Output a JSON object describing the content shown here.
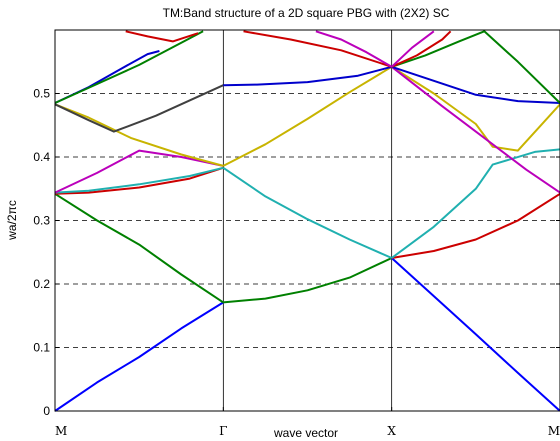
{
  "chart_data": {
    "type": "line",
    "title": "TM:Band structure of a 2D square PBG with (2X2) SC",
    "xlabel": "wave vector",
    "ylabel": "wa/2πc",
    "ylim": [
      0,
      0.6
    ],
    "yticks": [
      0,
      0.1,
      0.2,
      0.3,
      0.4,
      0.5
    ],
    "ytick_labels": [
      "0",
      "0.1",
      "0.2",
      "0.3",
      "0.4",
      "0.5"
    ],
    "xlim": [
      0,
      3
    ],
    "xticks": [
      0,
      1,
      2,
      3
    ],
    "xtick_labels": [
      "M",
      "Γ",
      "X",
      "M"
    ],
    "grid": "horizontal dashed",
    "symmetry_lines_at": [
      1,
      2
    ],
    "series": [
      {
        "color": "#0000ff",
        "x": [
          0,
          0.25,
          0.5,
          0.75,
          1
        ],
        "values": [
          0,
          0.045,
          0.085,
          0.13,
          0.171
        ]
      },
      {
        "color": "#008000",
        "x": [
          0,
          0.25,
          0.5,
          0.75,
          1
        ],
        "values": [
          0.342,
          0.3,
          0.262,
          0.215,
          0.171
        ]
      },
      {
        "color": "#cc0000",
        "x": [
          0,
          0.2,
          0.5,
          0.8,
          1
        ],
        "values": [
          0.342,
          0.344,
          0.352,
          0.366,
          0.383
        ]
      },
      {
        "color": "#20b0b0",
        "x": [
          0,
          0.2,
          0.5,
          0.8,
          1
        ],
        "values": [
          0.344,
          0.347,
          0.357,
          0.37,
          0.383
        ]
      },
      {
        "color": "#bb00bb",
        "x": [
          0,
          0.25,
          0.5,
          0.75,
          1
        ],
        "values": [
          0.344,
          0.375,
          0.41,
          0.4,
          0.386
        ]
      },
      {
        "color": "#c8b400",
        "x": [
          0,
          0.2,
          0.45,
          0.75,
          1
        ],
        "values": [
          0.483,
          0.462,
          0.43,
          0.404,
          0.386
        ]
      },
      {
        "color": "#404040",
        "x": [
          0,
          0.2,
          0.35,
          0.6,
          1
        ],
        "values": [
          0.483,
          0.458,
          0.44,
          0.465,
          0.513
        ]
      },
      {
        "color": "#0000cc",
        "x": [
          0,
          0.2,
          0.4,
          0.55,
          0.62
        ],
        "values": [
          0.485,
          0.51,
          0.54,
          0.562,
          0.567
        ]
      },
      {
        "color": "#008000",
        "x": [
          0,
          0.25,
          0.5,
          0.75,
          0.88
        ],
        "values": [
          0.485,
          0.515,
          0.545,
          0.58,
          0.598
        ]
      },
      {
        "color": "#cc0000",
        "x": [
          0.42,
          0.55,
          0.7,
          0.85
        ],
        "values": [
          0.598,
          0.59,
          0.582,
          0.595
        ]
      },
      {
        "color": "#008000",
        "x": [
          1,
          1.25,
          1.5,
          1.75,
          2
        ],
        "values": [
          0.171,
          0.177,
          0.19,
          0.21,
          0.241
        ]
      },
      {
        "color": "#20b0b0",
        "x": [
          1,
          1.25,
          1.5,
          1.75,
          2
        ],
        "values": [
          0.383,
          0.338,
          0.302,
          0.27,
          0.241
        ]
      },
      {
        "color": "#c8b400",
        "x": [
          1,
          1.25,
          1.5,
          1.75,
          2
        ],
        "values": [
          0.386,
          0.42,
          0.46,
          0.502,
          0.542
        ]
      },
      {
        "color": "#0000cc",
        "x": [
          1,
          1.2,
          1.5,
          1.8,
          2
        ],
        "values": [
          0.513,
          0.514,
          0.518,
          0.528,
          0.542
        ]
      },
      {
        "color": "#cc0000",
        "x": [
          1.12,
          1.4,
          1.7,
          2
        ],
        "values": [
          0.598,
          0.585,
          0.568,
          0.542
        ]
      },
      {
        "color": "#bb00bb",
        "x": [
          1.55,
          1.7,
          1.85,
          2
        ],
        "values": [
          0.598,
          0.585,
          0.565,
          0.542
        ]
      },
      {
        "color": "#0000ff",
        "x": [
          2,
          2.25,
          2.5,
          2.75,
          3
        ],
        "values": [
          0.241,
          0.181,
          0.121,
          0.06,
          0
        ]
      },
      {
        "color": "#cc0000",
        "x": [
          2,
          2.25,
          2.5,
          2.75,
          3
        ],
        "values": [
          0.241,
          0.252,
          0.27,
          0.3,
          0.342
        ]
      },
      {
        "color": "#20b0b0",
        "x": [
          2,
          2.25,
          2.5,
          2.6,
          2.85,
          3
        ],
        "values": [
          0.241,
          0.29,
          0.35,
          0.388,
          0.408,
          0.412
        ]
      },
      {
        "color": "#c8b400",
        "x": [
          2,
          2.25,
          2.5,
          2.6,
          2.75,
          3
        ],
        "values": [
          0.542,
          0.5,
          0.452,
          0.416,
          0.41,
          0.483
        ]
      },
      {
        "color": "#bb00bb",
        "x": [
          2,
          2.3,
          2.6,
          2.8,
          3
        ],
        "values": [
          0.542,
          0.48,
          0.42,
          0.38,
          0.344
        ]
      },
      {
        "color": "#0000cc",
        "x": [
          2,
          2.25,
          2.5,
          2.75,
          3
        ],
        "values": [
          0.542,
          0.52,
          0.498,
          0.488,
          0.485
        ]
      },
      {
        "color": "#008000",
        "x": [
          2,
          2.2,
          2.4,
          2.55,
          2.75,
          3
        ],
        "values": [
          0.542,
          0.56,
          0.582,
          0.598,
          0.55,
          0.485
        ]
      },
      {
        "color": "#cc0000",
        "x": [
          2,
          2.15,
          2.3,
          2.35
        ],
        "values": [
          0.542,
          0.56,
          0.585,
          0.598
        ]
      },
      {
        "color": "#bb00bb",
        "x": [
          2,
          2.12,
          2.25
        ],
        "values": [
          0.542,
          0.572,
          0.598
        ]
      }
    ]
  }
}
